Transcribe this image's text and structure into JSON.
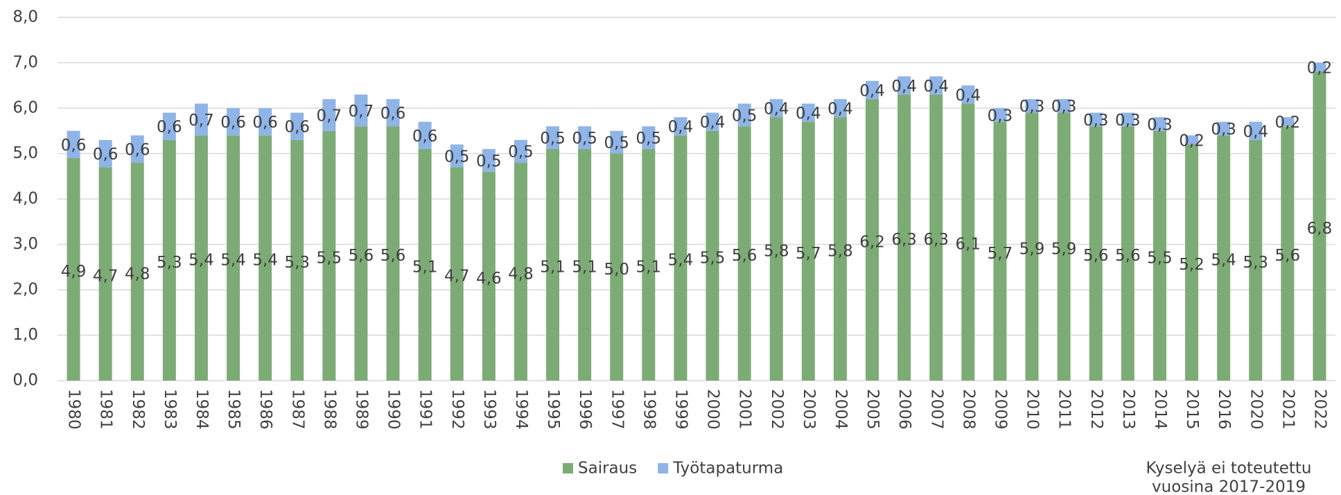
{
  "chart_data": {
    "type": "stacked_bar",
    "categories": [
      "1980",
      "1981",
      "1982",
      "1983",
      "1984",
      "1985",
      "1986",
      "1987",
      "1988",
      "1989",
      "1990",
      "1991",
      "1992",
      "1993",
      "1994",
      "1995",
      "1996",
      "1997",
      "1998",
      "1999",
      "2000",
      "2001",
      "2002",
      "2003",
      "2004",
      "2005",
      "2006",
      "2007",
      "2008",
      "2009",
      "2010",
      "2011",
      "2012",
      "2013",
      "2014",
      "2015",
      "2016",
      "2020",
      "2021",
      "2022"
    ],
    "series": [
      {
        "name": "Sairaus",
        "color": "#7dab75",
        "values": [
          4.9,
          4.7,
          4.8,
          5.3,
          5.4,
          5.4,
          5.4,
          5.3,
          5.5,
          5.6,
          5.6,
          5.1,
          4.7,
          4.6,
          4.8,
          5.1,
          5.1,
          5.0,
          5.1,
          5.4,
          5.5,
          5.6,
          5.8,
          5.7,
          5.8,
          6.2,
          6.3,
          6.3,
          6.1,
          5.7,
          5.9,
          5.9,
          5.6,
          5.6,
          5.5,
          5.2,
          5.4,
          5.3,
          5.6,
          6.8
        ],
        "value_labels": [
          "4,9",
          "4,7",
          "4,8",
          "5,3",
          "5,4",
          "5,4",
          "5,4",
          "5,3",
          "5,5",
          "5,6",
          "5,6",
          "5,1",
          "4,7",
          "4,6",
          "4,8",
          "5,1",
          "5,1",
          "5,0",
          "5,1",
          "5,4",
          "5,5",
          "5,6",
          "5,8",
          "5,7",
          "5,8",
          "6,2",
          "6,3",
          "6,3",
          "6,1",
          "5,7",
          "5,9",
          "5,9",
          "5,6",
          "5,6",
          "5,5",
          "5,2",
          "5,4",
          "5,3",
          "5,6",
          "6,8"
        ]
      },
      {
        "name": "Työtapaturma",
        "color": "#8fb4e8",
        "values": [
          0.6,
          0.6,
          0.6,
          0.6,
          0.7,
          0.6,
          0.6,
          0.6,
          0.7,
          0.7,
          0.6,
          0.6,
          0.5,
          0.5,
          0.5,
          0.5,
          0.5,
          0.5,
          0.5,
          0.4,
          0.4,
          0.5,
          0.4,
          0.4,
          0.4,
          0.4,
          0.4,
          0.4,
          0.4,
          0.3,
          0.3,
          0.3,
          0.3,
          0.3,
          0.3,
          0.2,
          0.3,
          0.4,
          0.2,
          0.2
        ],
        "value_labels": [
          "0,6",
          "0,6",
          "0,6",
          "0,6",
          "0,7",
          "0,6",
          "0,6",
          "0,6",
          "0,7",
          "0,7",
          "0,6",
          "0,6",
          "0,5",
          "0,5",
          "0,5",
          "0,5",
          "0,5",
          "0,5",
          "0,5",
          "0,4",
          "0,4",
          "0,5",
          "0,4",
          "0,4",
          "0,4",
          "0,4",
          "0,4",
          "0,4",
          "0,4",
          "0,3",
          "0,3",
          "0,3",
          "0,3",
          "0,3",
          "0,3",
          "0,2",
          "0,3",
          "0,4",
          "0,2",
          "0,2"
        ]
      }
    ],
    "ylim": [
      0,
      8
    ],
    "yticks": [
      {
        "value": 0,
        "label": "0,0"
      },
      {
        "value": 1,
        "label": "1,0"
      },
      {
        "value": 2,
        "label": "2,0"
      },
      {
        "value": 3,
        "label": "3,0"
      },
      {
        "value": 4,
        "label": "4,0"
      },
      {
        "value": 5,
        "label": "5,0"
      },
      {
        "value": 6,
        "label": "6,0"
      },
      {
        "value": 7,
        "label": "7,0"
      },
      {
        "value": 8,
        "label": "8,0"
      }
    ],
    "grid": true,
    "legend": "bottom",
    "annotation": [
      "Kyselyä ei toteutettu",
      "vuosina 2017-2019"
    ]
  }
}
